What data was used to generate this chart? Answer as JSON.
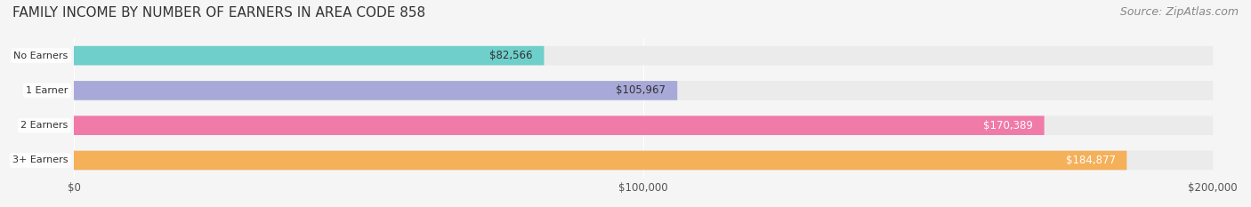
{
  "title": "FAMILY INCOME BY NUMBER OF EARNERS IN AREA CODE 858",
  "source": "Source: ZipAtlas.com",
  "categories": [
    "No Earners",
    "1 Earner",
    "2 Earners",
    "3+ Earners"
  ],
  "values": [
    82566,
    105967,
    170389,
    184877
  ],
  "labels": [
    "$82,566",
    "$105,967",
    "$170,389",
    "$184,877"
  ],
  "bar_colors": [
    "#6ecfcb",
    "#a9a9d9",
    "#f07aa8",
    "#f5b05a"
  ],
  "bar_bg_color": "#ebebeb",
  "label_colors": [
    "#333333",
    "#333333",
    "#ffffff",
    "#ffffff"
  ],
  "xlim": [
    0,
    200000
  ],
  "xticks": [
    0,
    100000,
    200000
  ],
  "xtick_labels": [
    "$0",
    "$100,000",
    "$200,000"
  ],
  "title_fontsize": 11,
  "source_fontsize": 9,
  "bg_color": "#f5f5f5",
  "bar_height": 0.55,
  "bar_bg_alpha": 1.0
}
